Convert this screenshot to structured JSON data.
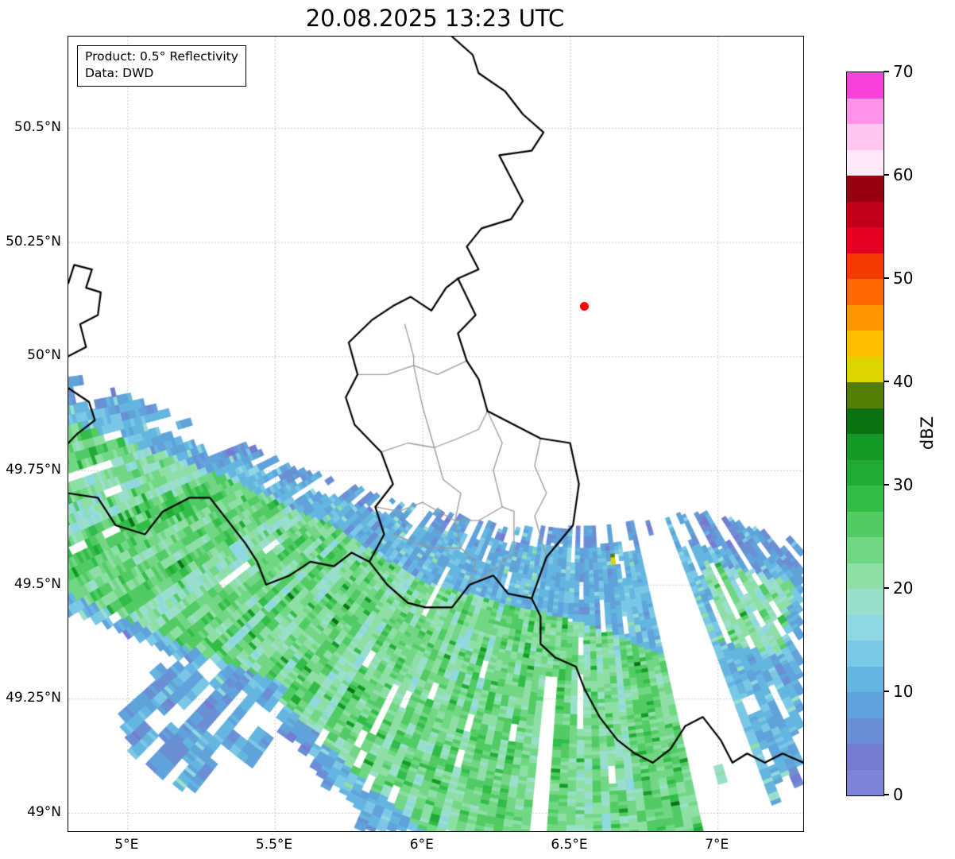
{
  "title": "20.08.2025 13:23 UTC",
  "info_box": {
    "line1": "Product: 0.5° Reflectivity",
    "line2": "Data: DWD"
  },
  "axes": {
    "x_ticks": [
      {
        "label": "5°E",
        "lon": 5.0
      },
      {
        "label": "5.5°E",
        "lon": 5.5
      },
      {
        "label": "6°E",
        "lon": 6.0
      },
      {
        "label": "6.5°E",
        "lon": 6.5
      },
      {
        "label": "7°E",
        "lon": 7.0
      }
    ],
    "y_ticks": [
      {
        "label": "49°N",
        "lat": 49.0
      },
      {
        "label": "49.25°N",
        "lat": 49.25
      },
      {
        "label": "49.5°N",
        "lat": 49.5
      },
      {
        "label": "49.75°N",
        "lat": 49.75
      },
      {
        "label": "50°N",
        "lat": 50.0
      },
      {
        "label": "50.25°N",
        "lat": 50.25
      },
      {
        "label": "50.5°N",
        "lat": 50.5
      }
    ]
  },
  "map_extent": {
    "lon_min": 4.8,
    "lon_max": 7.29,
    "lat_min": 48.96,
    "lat_max": 50.7
  },
  "grid": {
    "color": "#b5b5b5"
  },
  "colorbar": {
    "label": "dBZ",
    "min": 0,
    "max": 70,
    "step": 2.5,
    "ticks": [
      0,
      10,
      20,
      30,
      40,
      50,
      60,
      70
    ],
    "colors": [
      "#8084d8",
      "#767bd1",
      "#6b8fd4",
      "#60a3da",
      "#64b6e0",
      "#7ac7e6",
      "#8fd8e2",
      "#9adfcb",
      "#8edfa5",
      "#72d784",
      "#52cb65",
      "#32bc48",
      "#20ab35",
      "#149826",
      "#0b7211",
      "#557e06",
      "#ded400",
      "#ffbf00",
      "#ff9400",
      "#ff6a00",
      "#f63b00",
      "#e30022",
      "#bf0018",
      "#97000f",
      "#ffeafa",
      "#ffc6f0",
      "#ff93e8",
      "#fa41da"
    ]
  },
  "chart_data": {
    "type": "heatmap",
    "title": "20.08.2025 13:23 UTC",
    "product": "0.5° Reflectivity",
    "data_source": "DWD",
    "units": "dBZ",
    "value_range": [
      0,
      70
    ],
    "radar_site": {
      "lon": 6.548,
      "lat": 50.11,
      "marker_color": "#ff0000"
    },
    "echo_regions": [
      {
        "name": "band-outer-blue-fringe",
        "base": 8,
        "spread": 6,
        "dropout": 0.45,
        "poly": [
          [
            4.8,
            49.95
          ],
          [
            5.2,
            49.86
          ],
          [
            5.6,
            49.75
          ],
          [
            5.95,
            49.68
          ],
          [
            6.3,
            49.63
          ],
          [
            6.6,
            49.63
          ],
          [
            6.95,
            49.67
          ],
          [
            7.29,
            49.6
          ],
          [
            7.29,
            49.05
          ],
          [
            7.0,
            48.96
          ],
          [
            5.8,
            48.96
          ],
          [
            5.62,
            49.12
          ],
          [
            5.4,
            49.27
          ],
          [
            5.05,
            49.38
          ],
          [
            4.8,
            49.41
          ]
        ]
      },
      {
        "name": "band-blue",
        "base": 11,
        "spread": 6,
        "dropout": 0.16,
        "poly": [
          [
            4.8,
            49.9
          ],
          [
            5.25,
            49.8
          ],
          [
            5.65,
            49.7
          ],
          [
            6.0,
            49.63
          ],
          [
            6.35,
            49.59
          ],
          [
            6.7,
            49.58
          ],
          [
            7.0,
            49.59
          ],
          [
            7.29,
            49.54
          ],
          [
            7.29,
            49.12
          ],
          [
            7.05,
            48.96
          ],
          [
            5.86,
            48.96
          ],
          [
            5.68,
            49.1
          ],
          [
            5.48,
            49.24
          ],
          [
            5.12,
            49.36
          ],
          [
            4.8,
            49.44
          ]
        ]
      },
      {
        "name": "band-green-core",
        "base": 23,
        "spread": 9,
        "dropout": 0.1,
        "poly": [
          [
            4.8,
            49.85
          ],
          [
            5.3,
            49.74
          ],
          [
            5.7,
            49.63
          ],
          [
            6.0,
            49.51
          ],
          [
            6.3,
            49.46
          ],
          [
            6.55,
            49.42
          ],
          [
            6.8,
            49.36
          ],
          [
            7.0,
            49.27
          ],
          [
            7.07,
            49.12
          ],
          [
            6.97,
            48.96
          ],
          [
            6.02,
            48.96
          ],
          [
            5.8,
            49.08
          ],
          [
            5.58,
            49.22
          ],
          [
            5.25,
            49.35
          ],
          [
            4.8,
            49.48
          ]
        ]
      },
      {
        "name": "east-green-blob",
        "base": 21,
        "spread": 7,
        "dropout": 0.28,
        "poly": [
          [
            6.95,
            49.56
          ],
          [
            7.26,
            49.51
          ],
          [
            7.23,
            49.35
          ],
          [
            7.02,
            49.38
          ]
        ]
      },
      {
        "name": "southwest-blue-patch",
        "base": 10,
        "spread": 6,
        "dropout": 0.34,
        "poly": [
          [
            5.0,
            49.2
          ],
          [
            5.12,
            49.31
          ],
          [
            5.33,
            49.33
          ],
          [
            5.55,
            49.28
          ],
          [
            5.5,
            49.13
          ],
          [
            5.36,
            49.04
          ],
          [
            5.19,
            49.05
          ],
          [
            5.04,
            49.12
          ]
        ]
      },
      {
        "name": "orange-speck",
        "base": 40,
        "spread": 4,
        "dropout": 0.55,
        "poly": [
          [
            6.64,
            49.57
          ],
          [
            6.67,
            49.57
          ],
          [
            6.67,
            49.55
          ],
          [
            6.64,
            49.55
          ]
        ]
      }
    ],
    "gaps": [
      {
        "az_min": 159,
        "az_max": 166,
        "r_min": 48
      },
      {
        "az_min": 183.5,
        "az_max": 185.5,
        "r_min": 90
      }
    ]
  },
  "borders": {
    "country_color": "#000000",
    "admin_color": "#9a9a9a",
    "countries": [
      [
        [
          6.12,
          50.17
        ],
        [
          6.18,
          50.09
        ],
        [
          6.12,
          50.05
        ],
        [
          6.15,
          49.99
        ],
        [
          6.19,
          49.95
        ],
        [
          6.22,
          49.88
        ],
        [
          6.31,
          49.85
        ],
        [
          6.4,
          49.82
        ],
        [
          6.5,
          49.81
        ],
        [
          6.53,
          49.72
        ],
        [
          6.51,
          49.63
        ],
        [
          6.42,
          49.56
        ],
        [
          6.37,
          49.47
        ],
        [
          6.29,
          49.48
        ],
        [
          6.24,
          49.52
        ],
        [
          6.16,
          49.5
        ],
        [
          6.1,
          49.45
        ],
        [
          6.01,
          49.45
        ],
        [
          5.95,
          49.46
        ],
        [
          5.88,
          49.5
        ],
        [
          5.82,
          49.55
        ],
        [
          5.87,
          49.61
        ],
        [
          5.84,
          49.67
        ],
        [
          5.9,
          49.72
        ],
        [
          5.86,
          49.79
        ],
        [
          5.77,
          49.85
        ],
        [
          5.74,
          49.91
        ],
        [
          5.78,
          49.96
        ],
        [
          5.75,
          50.03
        ],
        [
          5.83,
          50.08
        ],
        [
          5.9,
          50.11
        ],
        [
          5.96,
          50.13
        ],
        [
          6.03,
          50.1
        ],
        [
          6.08,
          50.15
        ],
        [
          6.12,
          50.17
        ]
      ],
      [
        [
          6.12,
          50.17
        ],
        [
          6.19,
          50.19
        ],
        [
          6.15,
          50.24
        ],
        [
          6.2,
          50.28
        ],
        [
          6.3,
          50.3
        ],
        [
          6.34,
          50.34
        ],
        [
          6.3,
          50.39
        ],
        [
          6.26,
          50.44
        ],
        [
          6.37,
          50.45
        ],
        [
          6.41,
          50.49
        ],
        [
          6.34,
          50.53
        ],
        [
          6.28,
          50.58
        ],
        [
          6.19,
          50.62
        ],
        [
          6.17,
          50.66
        ],
        [
          6.1,
          50.7
        ]
      ],
      [
        [
          4.8,
          49.7
        ],
        [
          4.9,
          49.69
        ],
        [
          4.96,
          49.63
        ],
        [
          5.06,
          49.61
        ],
        [
          5.12,
          49.66
        ],
        [
          5.21,
          49.69
        ],
        [
          5.28,
          49.69
        ],
        [
          5.34,
          49.64
        ],
        [
          5.4,
          49.59
        ],
        [
          5.44,
          49.55
        ],
        [
          5.47,
          49.5
        ],
        [
          5.55,
          49.52
        ],
        [
          5.62,
          49.55
        ],
        [
          5.7,
          49.54
        ],
        [
          5.76,
          49.57
        ],
        [
          5.82,
          49.55
        ]
      ],
      [
        [
          6.37,
          49.47
        ],
        [
          6.4,
          49.43
        ],
        [
          6.4,
          49.37
        ],
        [
          6.45,
          49.34
        ],
        [
          6.52,
          49.32
        ],
        [
          6.55,
          49.27
        ],
        [
          6.6,
          49.21
        ],
        [
          6.66,
          49.16
        ],
        [
          6.72,
          49.13
        ],
        [
          6.78,
          49.11
        ],
        [
          6.84,
          49.14
        ],
        [
          6.89,
          49.19
        ],
        [
          6.95,
          49.21
        ],
        [
          7.01,
          49.16
        ],
        [
          7.05,
          49.11
        ],
        [
          7.1,
          49.13
        ],
        [
          7.16,
          49.11
        ],
        [
          7.22,
          49.13
        ],
        [
          7.29,
          49.11
        ]
      ],
      [
        [
          4.8,
          50.0
        ],
        [
          4.86,
          50.02
        ],
        [
          4.84,
          50.07
        ],
        [
          4.9,
          50.09
        ],
        [
          4.91,
          50.14
        ],
        [
          4.86,
          50.15
        ],
        [
          4.88,
          50.19
        ],
        [
          4.82,
          50.2
        ],
        [
          4.8,
          50.16
        ]
      ],
      [
        [
          4.8,
          49.93
        ],
        [
          4.87,
          49.9
        ],
        [
          4.89,
          49.86
        ],
        [
          4.83,
          49.83
        ],
        [
          4.8,
          49.81
        ]
      ]
    ],
    "admin": [
      [
        [
          5.78,
          49.96
        ],
        [
          5.88,
          49.96
        ],
        [
          5.97,
          49.98
        ],
        [
          6.05,
          49.96
        ],
        [
          6.15,
          49.99
        ]
      ],
      [
        [
          5.94,
          50.07
        ],
        [
          5.97,
          50.0
        ],
        [
          5.97,
          49.98
        ]
      ],
      [
        [
          5.97,
          49.98
        ],
        [
          6.0,
          49.89
        ],
        [
          6.04,
          49.8
        ]
      ],
      [
        [
          5.86,
          49.79
        ],
        [
          5.95,
          49.81
        ],
        [
          6.04,
          49.8
        ],
        [
          6.12,
          49.82
        ],
        [
          6.19,
          49.84
        ],
        [
          6.22,
          49.88
        ]
      ],
      [
        [
          6.04,
          49.8
        ],
        [
          6.07,
          49.73
        ],
        [
          6.13,
          49.7
        ],
        [
          6.11,
          49.64
        ]
      ],
      [
        [
          5.84,
          49.67
        ],
        [
          5.92,
          49.66
        ],
        [
          6.0,
          49.68
        ],
        [
          6.11,
          49.64
        ],
        [
          6.19,
          49.64
        ],
        [
          6.27,
          49.67
        ],
        [
          6.31,
          49.66
        ]
      ],
      [
        [
          6.22,
          49.88
        ],
        [
          6.27,
          49.81
        ],
        [
          6.24,
          49.75
        ],
        [
          6.27,
          49.67
        ]
      ],
      [
        [
          6.11,
          49.64
        ],
        [
          6.13,
          49.58
        ],
        [
          6.18,
          49.55
        ],
        [
          6.16,
          49.5
        ]
      ],
      [
        [
          5.9,
          49.61
        ],
        [
          5.98,
          49.59
        ],
        [
          6.05,
          49.58
        ],
        [
          6.13,
          49.58
        ]
      ],
      [
        [
          6.4,
          49.82
        ],
        [
          6.38,
          49.76
        ],
        [
          6.42,
          49.7
        ],
        [
          6.38,
          49.65
        ],
        [
          6.42,
          49.56
        ]
      ],
      [
        [
          6.16,
          49.5
        ],
        [
          6.24,
          49.53
        ],
        [
          6.31,
          49.57
        ],
        [
          6.31,
          49.66
        ]
      ]
    ]
  }
}
